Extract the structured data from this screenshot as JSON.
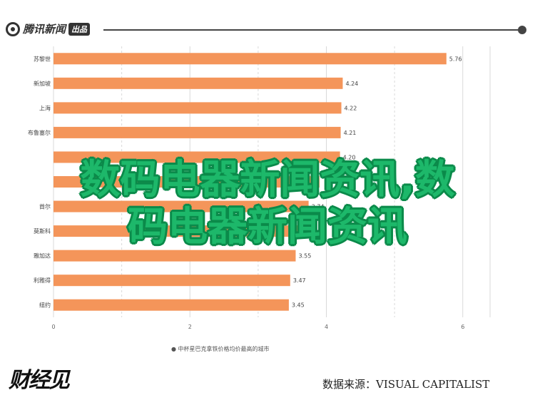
{
  "header": {
    "logo_text": "腾讯新闻",
    "logo_badge": "出品"
  },
  "chart_data": {
    "type": "bar",
    "orientation": "horizontal",
    "categories": [
      "苏黎世",
      "新加坡",
      "上海",
      "布鲁塞尔",
      "",
      "",
      "首尔",
      "莫斯科",
      "雅加达",
      "利雅得",
      "纽约"
    ],
    "values": [
      5.76,
      4.24,
      4.22,
      4.21,
      4.2,
      null,
      null,
      null,
      3.55,
      3.47,
      3.45
    ],
    "value_labels": [
      "5.76",
      "4.24",
      "4.22",
      "4.21",
      "4.20",
      "",
      "3.74",
      "",
      "3.55",
      "3.47",
      "3.45"
    ],
    "xlim": [
      0,
      6.4
    ],
    "xticks": [
      "0",
      "2",
      "4",
      "6"
    ],
    "grid": true,
    "bar_color": "#f4955a",
    "xlabel": "● 中杯星巴克拿铁价格均价最高的城市"
  },
  "watermark": {
    "line1": "数码电器新闻资讯,数",
    "line2": "码电器新闻资讯"
  },
  "footer": {
    "logo": "财经见",
    "source": "数据来源：VISUAL CAPITALIST"
  },
  "colors": {
    "watermark_fill": "#1db86a",
    "watermark_outline": "#0b8a4a"
  }
}
